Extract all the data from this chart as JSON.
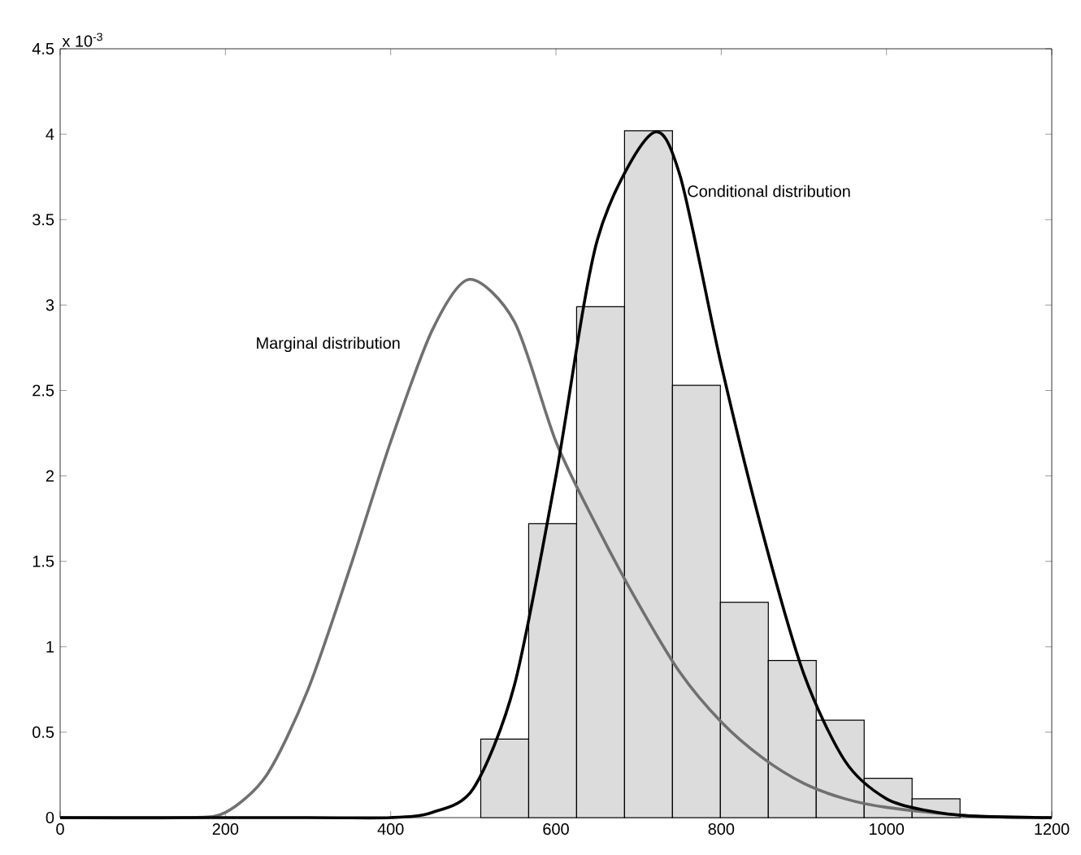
{
  "chart_data": {
    "type": "histogram",
    "bins": [
      509,
      567,
      625,
      683,
      741,
      799,
      857,
      915,
      973,
      1031,
      1089
    ],
    "values": [
      0.46,
      1.72,
      2.99,
      4.02,
      2.53,
      1.26,
      0.92,
      0.57,
      0.23,
      0.11
    ],
    "color": "#dcdcdc",
    "series": [
      {
        "type": "line",
        "name": "Marginal distribution",
        "color": "#707070",
        "x": [
          0,
          150,
          200,
          250,
          300,
          350,
          400,
          450,
          495,
          550,
          600,
          650,
          700,
          750,
          800,
          850,
          900,
          950,
          1000,
          1100,
          1200
        ],
        "values": [
          0,
          0,
          0.03,
          0.25,
          0.75,
          1.45,
          2.2,
          2.85,
          3.15,
          2.9,
          2.2,
          1.7,
          1.25,
          0.85,
          0.56,
          0.35,
          0.2,
          0.11,
          0.06,
          0.01,
          0
        ]
      },
      {
        "type": "line",
        "name": "Conditional distribution",
        "color": "#000000",
        "x": [
          0,
          300,
          400,
          450,
          500,
          550,
          600,
          650,
          715,
          750,
          800,
          850,
          900,
          950,
          1000,
          1050,
          1100,
          1200
        ],
        "values": [
          0,
          0,
          0,
          0.03,
          0.17,
          0.78,
          2.0,
          3.38,
          4.0,
          3.76,
          2.65,
          1.67,
          0.84,
          0.33,
          0.11,
          0.04,
          0.01,
          0
        ]
      }
    ],
    "xlim": [
      0,
      1200
    ],
    "xticks": [
      0,
      200,
      400,
      600,
      800,
      1000,
      1200
    ],
    "ylim": [
      0,
      4.5
    ],
    "yticks": [
      0,
      0.5,
      1,
      1.5,
      2,
      2.5,
      3,
      3.5,
      4,
      4.5
    ],
    "grid": false,
    "marker": "none",
    "line_style": "solid",
    "annotations": [
      "x 10$^{-3}$"
    ]
  }
}
